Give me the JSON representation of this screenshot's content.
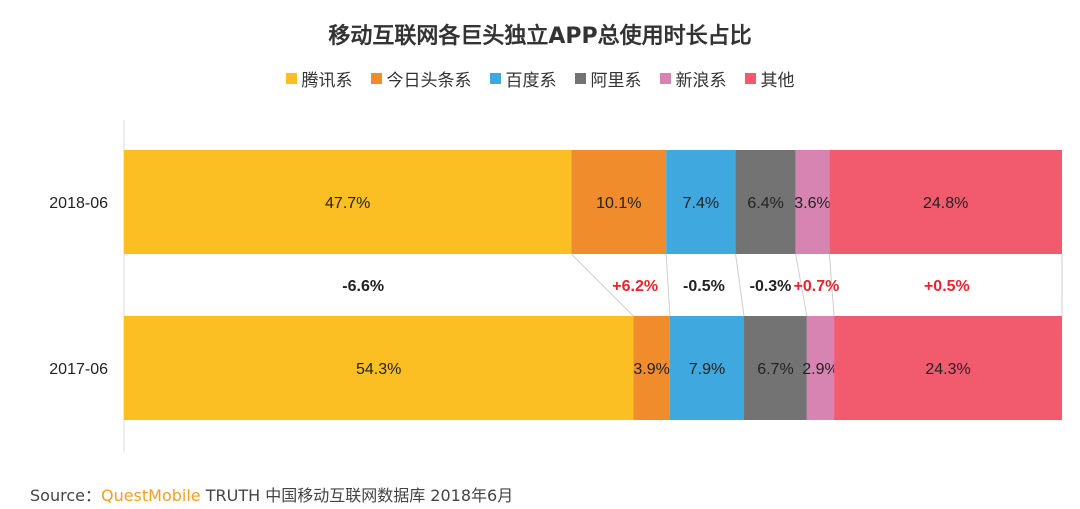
{
  "chart_data": {
    "type": "bar",
    "stacked": "100%",
    "orientation": "horizontal",
    "title": "移动互联网各巨头独立APP总使用时长占比",
    "categories": [
      "2018-06",
      "2017-06"
    ],
    "series": [
      {
        "name": "腾讯系",
        "color": "#fbbf24",
        "values": [
          47.7,
          54.3
        ],
        "labels": [
          "47.7%",
          "54.3%"
        ],
        "change": "-6.6%",
        "change_color": "#222222"
      },
      {
        "name": "今日头条系",
        "color": "#f08c2b",
        "values": [
          10.1,
          3.9
        ],
        "labels": [
          "10.1%",
          "3.9%"
        ],
        "change": "+6.2%",
        "change_color": "#e8222f"
      },
      {
        "name": "百度系",
        "color": "#3fa8de",
        "values": [
          7.4,
          7.9
        ],
        "labels": [
          "7.4%",
          "7.9%"
        ],
        "change": "-0.5%",
        "change_color": "#222222"
      },
      {
        "name": "阿里系",
        "color": "#737373",
        "values": [
          6.4,
          6.7
        ],
        "labels": [
          "6.4%",
          "6.7%"
        ],
        "change": "-0.3%",
        "change_color": "#222222"
      },
      {
        "name": "新浪系",
        "color": "#d884b3",
        "values": [
          3.6,
          2.9
        ],
        "labels": [
          "3.6%",
          "2.9%"
        ],
        "change": "+0.7%",
        "change_color": "#e8222f"
      },
      {
        "name": "其他",
        "color": "#f25b6e",
        "values": [
          24.8,
          24.3
        ],
        "labels": [
          "24.8%",
          "24.3%"
        ],
        "change": "+0.5%",
        "change_color": "#e8222f"
      }
    ],
    "legend_position": "top-center",
    "grid": false
  },
  "source": {
    "prefix": "Source：",
    "brand": "QuestMobile",
    "text": " TRUTH 中国移动互联网数据库 2018年6月"
  }
}
